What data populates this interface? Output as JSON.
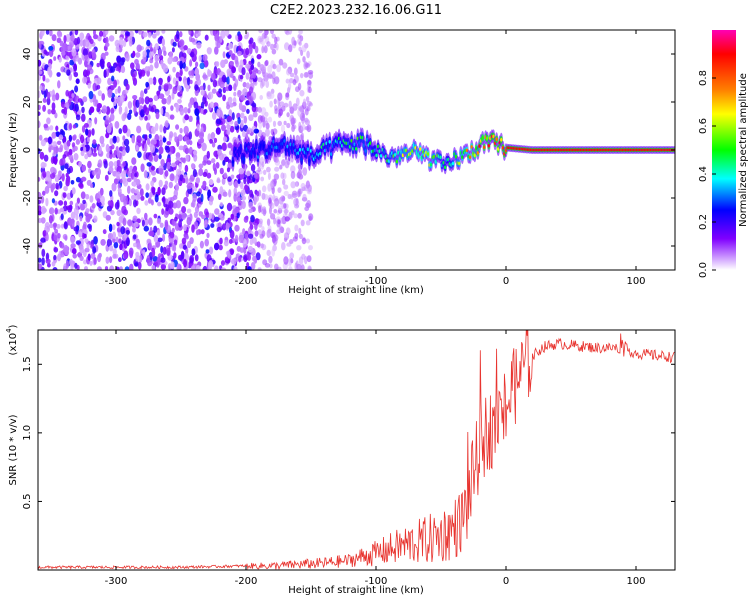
{
  "title": "C2E2.2023.232.16.06.G11",
  "chart_data": [
    {
      "type": "heatmap",
      "xlabel": "Height of straight line (km)",
      "ylabel": "Frequency (Hz)",
      "xlim": [
        -360,
        130
      ],
      "ylim": [
        -50,
        50
      ],
      "xticks": [
        -300,
        -200,
        -100,
        0,
        100
      ],
      "yticks": [
        -40,
        -20,
        0,
        20,
        40
      ],
      "colorbar": {
        "label": "Normalized spectral amplitude",
        "range": [
          0,
          1
        ],
        "ticks": [
          0.0,
          0.2,
          0.4,
          0.6,
          0.8
        ],
        "colormap": [
          "#ff00b4",
          "#ff0000",
          "#ff8000",
          "#ffff00",
          "#00ff00",
          "#00ffff",
          "#0000ff",
          "#8000ff",
          "#ffffff"
        ]
      },
      "signal_track": {
        "x": [
          -210,
          -190,
          -170,
          -150,
          -130,
          -110,
          -100,
          -90,
          -80,
          -70,
          -60,
          -50,
          -45,
          -40,
          -30,
          -20,
          -10,
          0,
          20,
          40,
          60,
          80,
          100,
          130
        ],
        "frequency": [
          -2,
          0,
          2,
          -3,
          2,
          3,
          0,
          -3,
          -2,
          -1,
          -3,
          -6,
          -7,
          -4,
          -2,
          2,
          3,
          1,
          0,
          0,
          0,
          0,
          0,
          0
        ],
        "amplitude": [
          0.25,
          0.3,
          0.35,
          0.4,
          0.45,
          0.5,
          0.45,
          0.5,
          0.6,
          0.65,
          0.7,
          0.5,
          0.45,
          0.55,
          0.7,
          0.85,
          0.9,
          0.9,
          0.9,
          0.9,
          0.9,
          0.9,
          0.9,
          0.9
        ]
      },
      "noise_region": {
        "x_start": -360,
        "x_end": -190,
        "sparse_end": -150
      }
    },
    {
      "type": "line",
      "xlabel": "Height of straight line (km)",
      "ylabel": "SNR (10 * v/v)",
      "y_multiplier_label": "(x10",
      "y_multiplier_exp": "4",
      "xlim": [
        -360,
        130
      ],
      "ylim": [
        0,
        1.75
      ],
      "xticks": [
        -300,
        -200,
        -100,
        0,
        100
      ],
      "yticks": [
        0.5,
        1.0,
        1.5
      ],
      "ytick_labels": [
        "0.5",
        "1.0",
        "1.5"
      ],
      "color": "#e8342f",
      "series": [
        {
          "x": [
            -360,
            -300,
            -250,
            -200,
            -180,
            -160,
            -140,
            -120,
            -110,
            -100,
            -90,
            -80,
            -70,
            -60,
            -50,
            -40,
            -35,
            -30,
            -25,
            -20,
            -15,
            -10,
            -5,
            0,
            5,
            10,
            15,
            20,
            25,
            30,
            40,
            50,
            60,
            70,
            80,
            90,
            95,
            100,
            110,
            120,
            130
          ],
          "values": [
            0.02,
            0.02,
            0.02,
            0.03,
            0.03,
            0.04,
            0.05,
            0.07,
            0.1,
            0.12,
            0.15,
            0.18,
            0.2,
            0.22,
            0.25,
            0.3,
            0.35,
            0.45,
            0.7,
            0.9,
            1.0,
            1.05,
            1.1,
            1.2,
            1.3,
            1.4,
            1.5,
            1.55,
            1.6,
            1.63,
            1.65,
            1.64,
            1.63,
            1.62,
            1.62,
            1.62,
            1.6,
            1.58,
            1.57,
            1.56,
            1.55
          ]
        }
      ]
    }
  ]
}
